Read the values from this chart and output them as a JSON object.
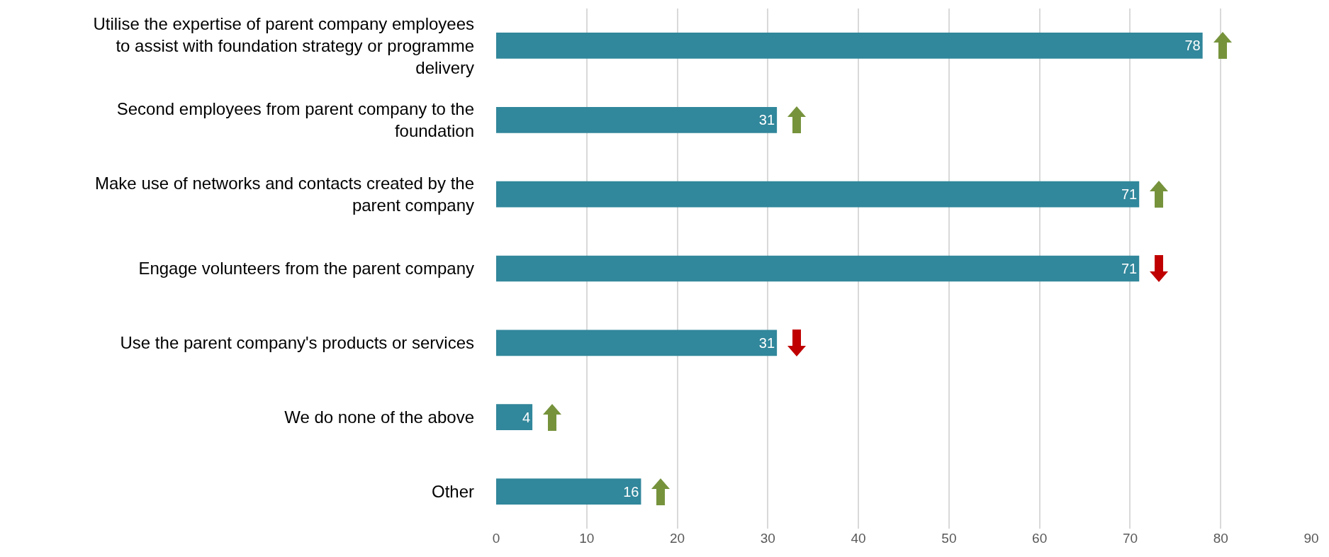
{
  "chart_data": {
    "type": "bar",
    "orientation": "horizontal",
    "categories": [
      "Utilise the expertise of parent company employees to assist with foundation strategy or programme delivery",
      "Second employees from parent company to the foundation",
      "Make use of networks and contacts created by the parent company",
      "Engage volunteers from the parent company",
      "Use the parent company's products or services",
      "We do none of the above",
      "Other"
    ],
    "values": [
      78,
      31,
      71,
      71,
      31,
      4,
      16
    ],
    "color": "#31879b",
    "data_labels": true,
    "xlim": [
      0,
      90
    ],
    "xticks": [
      0,
      10,
      20,
      30,
      40,
      50,
      60,
      70,
      80,
      90
    ],
    "grid": "x"
  }
}
